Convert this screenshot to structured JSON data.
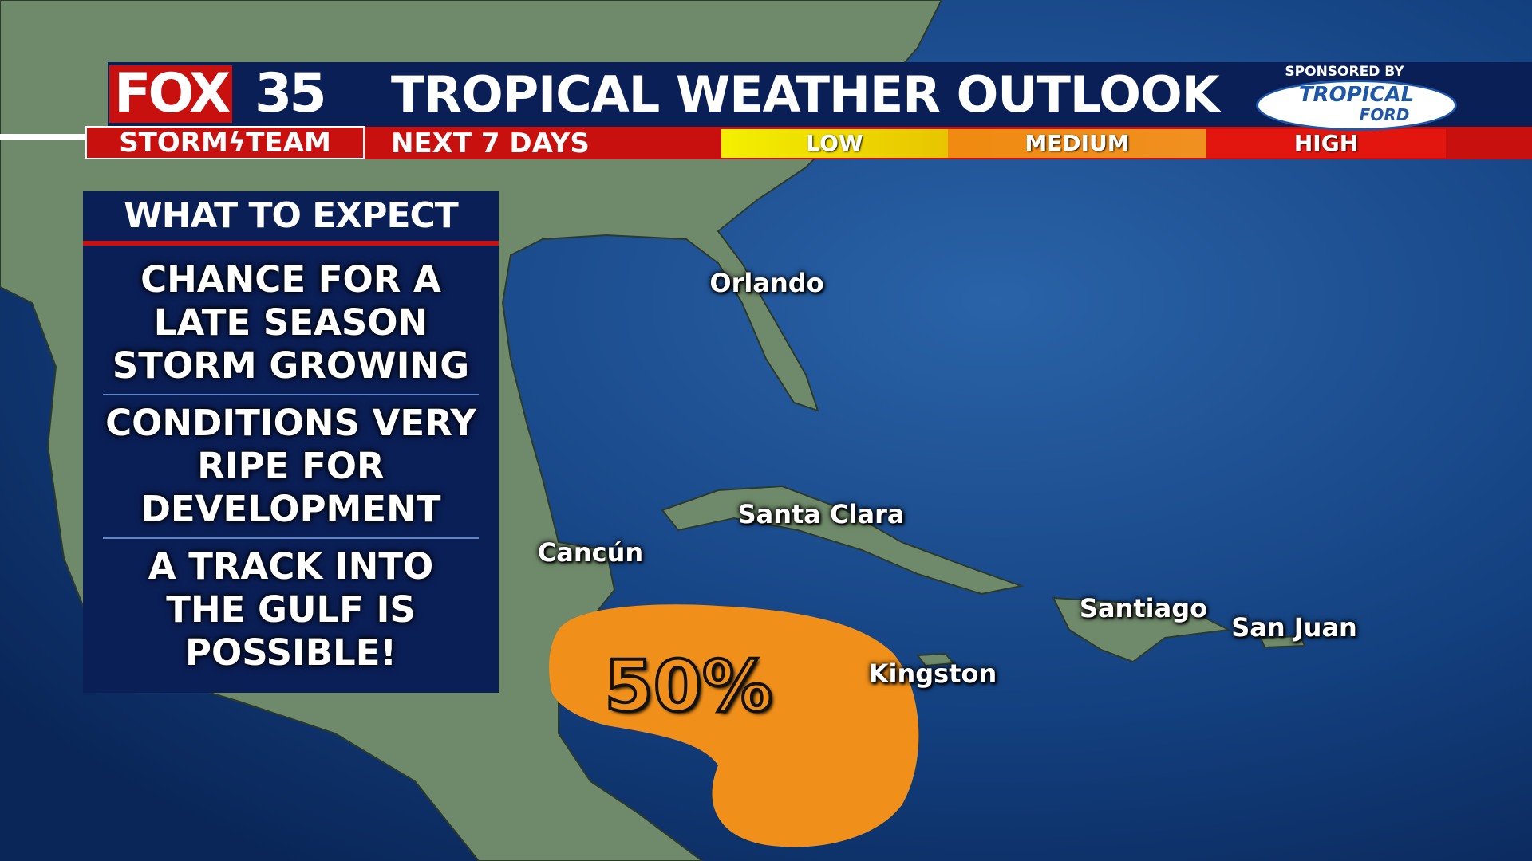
{
  "header": {
    "logo": {
      "brand": "FOX",
      "channel": "35",
      "team_left": "STORM",
      "team_right": "TEAM"
    },
    "title": "TROPICAL WEATHER OUTLOOK",
    "period": "NEXT 7 DAYS",
    "legend": [
      "LOW",
      "MEDIUM",
      "HIGH"
    ],
    "sponsor": {
      "label": "SPONSORED BY",
      "name_top": "TROPICAL",
      "name_bottom": "FORD"
    }
  },
  "panel": {
    "heading": "WHAT TO EXPECT",
    "items": [
      [
        "CHANCE FOR A",
        "LATE SEASON",
        "STORM GROWING"
      ],
      [
        "CONDITIONS VERY",
        "RIPE FOR",
        "DEVELOPMENT"
      ],
      [
        "A TRACK INTO",
        "THE GULF IS",
        "POSSIBLE!"
      ]
    ]
  },
  "map": {
    "cities": [
      "Orlando",
      "Santa Clara",
      "Cancún",
      "Kingston",
      "Santiago",
      "San Juan"
    ],
    "outlook_area": {
      "chance": "50%"
    }
  }
}
